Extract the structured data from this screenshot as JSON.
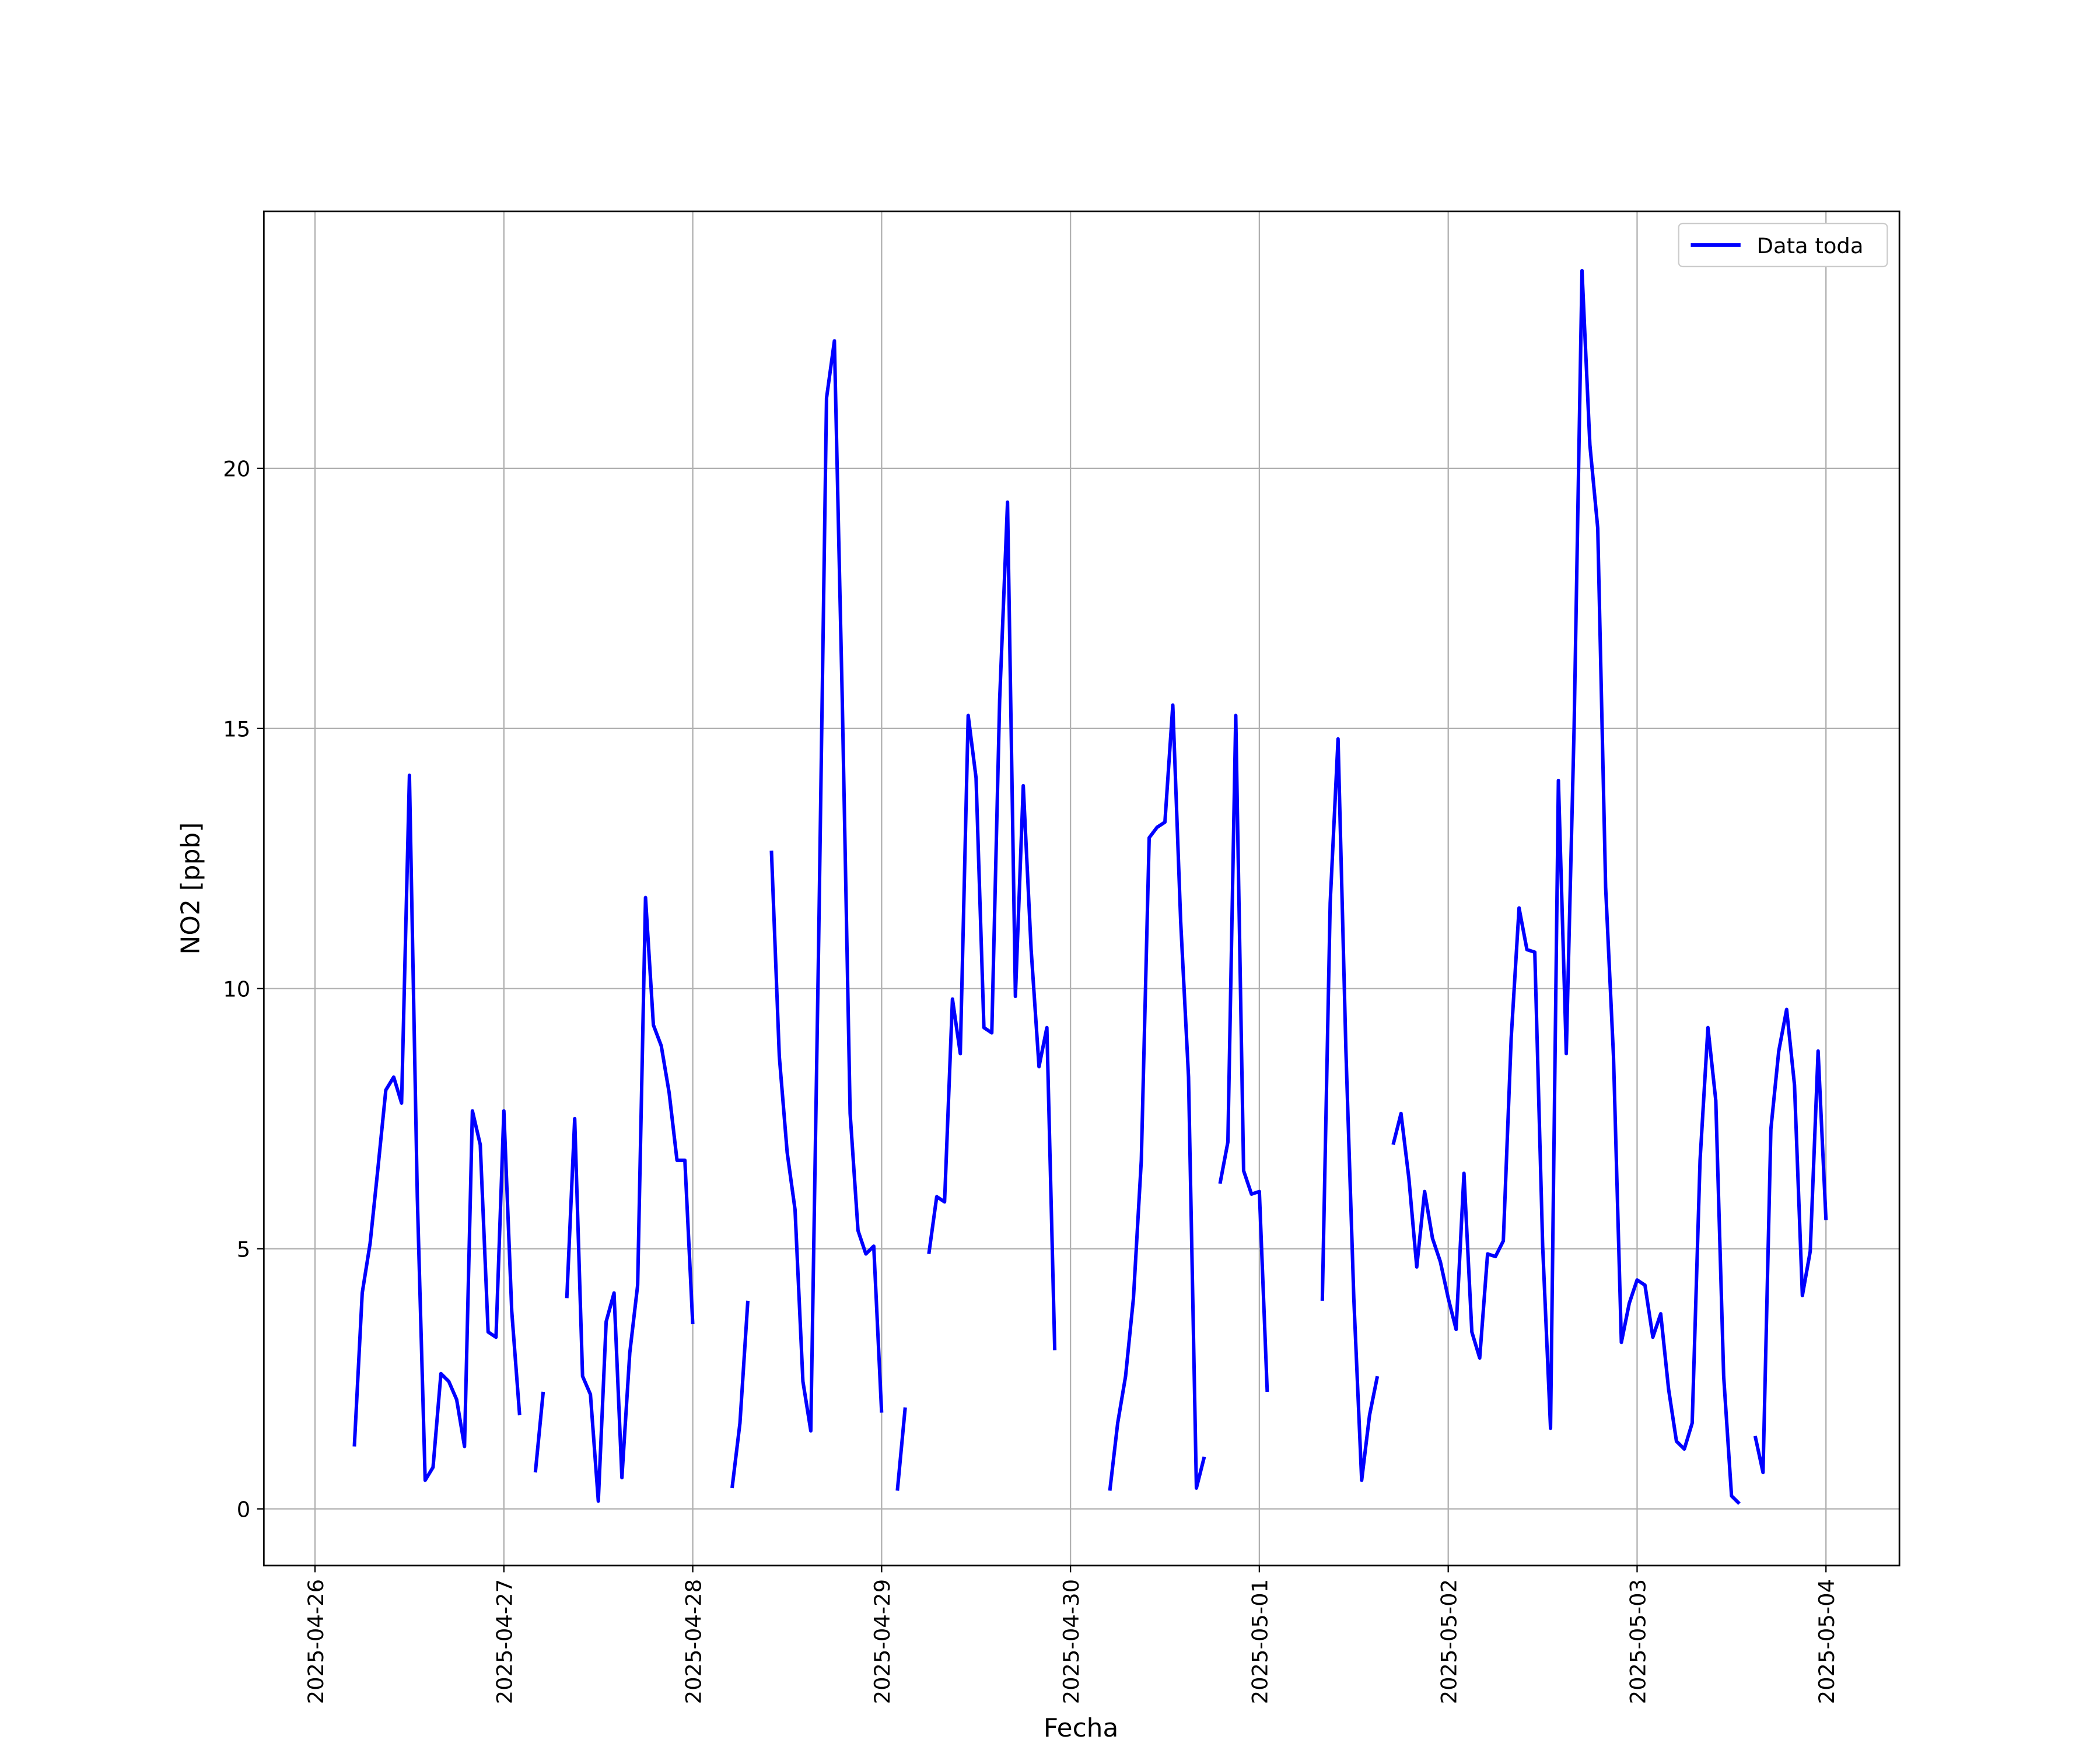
{
  "chart_data": {
    "type": "line",
    "xlabel": "Fecha",
    "ylabel": "NO2 [ppb]",
    "x": [
      "2025-04-26 05:00",
      "2025-04-26 06:00",
      "2025-04-26 07:00",
      "2025-04-26 08:00",
      "2025-04-26 09:00",
      "2025-04-26 10:00",
      "2025-04-26 11:00",
      "2025-04-26 12:00",
      "2025-04-26 13:00",
      "2025-04-26 14:00",
      "2025-04-26 15:00",
      "2025-04-26 16:00",
      "2025-04-26 17:00",
      "2025-04-26 18:00",
      "2025-04-26 19:00",
      "2025-04-26 20:00",
      "2025-04-26 21:00",
      "2025-04-26 22:00",
      "2025-04-26 23:00",
      "2025-04-27 00:00",
      "2025-04-27 01:00",
      "2025-04-27 02:00",
      "2025-04-27 03:00",
      "2025-04-27 04:00",
      "2025-04-27 05:00",
      "2025-04-27 06:00",
      "2025-04-27 07:00",
      "2025-04-27 08:00",
      "2025-04-27 09:00",
      "2025-04-27 10:00",
      "2025-04-27 11:00",
      "2025-04-27 12:00",
      "2025-04-27 13:00",
      "2025-04-27 14:00",
      "2025-04-27 15:00",
      "2025-04-27 16:00",
      "2025-04-27 17:00",
      "2025-04-27 18:00",
      "2025-04-27 19:00",
      "2025-04-27 20:00",
      "2025-04-27 21:00",
      "2025-04-27 22:00",
      "2025-04-27 23:00",
      "2025-04-28 00:00",
      "2025-04-28 01:00",
      "2025-04-28 02:00",
      "2025-04-28 03:00",
      "2025-04-28 04:00",
      "2025-04-28 05:00",
      "2025-04-28 06:00",
      "2025-04-28 07:00",
      "2025-04-28 08:00",
      "2025-04-28 09:00",
      "2025-04-28 10:00",
      "2025-04-28 11:00",
      "2025-04-28 12:00",
      "2025-04-28 13:00",
      "2025-04-28 14:00",
      "2025-04-28 15:00",
      "2025-04-28 16:00",
      "2025-04-28 17:00",
      "2025-04-28 18:00",
      "2025-04-28 19:00",
      "2025-04-28 20:00",
      "2025-04-28 21:00",
      "2025-04-28 22:00",
      "2025-04-28 23:00",
      "2025-04-29 00:00",
      "2025-04-29 01:00",
      "2025-04-29 02:00",
      "2025-04-29 03:00",
      "2025-04-29 04:00",
      "2025-04-29 05:00",
      "2025-04-29 06:00",
      "2025-04-29 07:00",
      "2025-04-29 08:00",
      "2025-04-29 09:00",
      "2025-04-29 10:00",
      "2025-04-29 11:00",
      "2025-04-29 12:00",
      "2025-04-29 13:00",
      "2025-04-29 14:00",
      "2025-04-29 15:00",
      "2025-04-29 16:00",
      "2025-04-29 17:00",
      "2025-04-29 18:00",
      "2025-04-29 19:00",
      "2025-04-29 20:00",
      "2025-04-29 21:00",
      "2025-04-29 22:00",
      "2025-04-29 23:00",
      "2025-04-30 00:00",
      "2025-04-30 01:00",
      "2025-04-30 02:00",
      "2025-04-30 03:00",
      "2025-04-30 04:00",
      "2025-04-30 05:00",
      "2025-04-30 06:00",
      "2025-04-30 07:00",
      "2025-04-30 08:00",
      "2025-04-30 09:00",
      "2025-04-30 10:00",
      "2025-04-30 11:00",
      "2025-04-30 12:00",
      "2025-04-30 13:00",
      "2025-04-30 14:00",
      "2025-04-30 15:00",
      "2025-04-30 16:00",
      "2025-04-30 17:00",
      "2025-04-30 18:00",
      "2025-04-30 19:00",
      "2025-04-30 20:00",
      "2025-04-30 21:00",
      "2025-04-30 22:00",
      "2025-04-30 23:00",
      "2025-05-01 00:00",
      "2025-05-01 01:00",
      "2025-05-01 02:00",
      "2025-05-01 03:00",
      "2025-05-01 04:00",
      "2025-05-01 05:00",
      "2025-05-01 06:00",
      "2025-05-01 07:00",
      "2025-05-01 08:00",
      "2025-05-01 09:00",
      "2025-05-01 10:00",
      "2025-05-01 11:00",
      "2025-05-01 12:00",
      "2025-05-01 13:00",
      "2025-05-01 14:00",
      "2025-05-01 15:00",
      "2025-05-01 16:00",
      "2025-05-01 17:00",
      "2025-05-01 18:00",
      "2025-05-01 19:00",
      "2025-05-01 20:00",
      "2025-05-01 21:00",
      "2025-05-01 22:00",
      "2025-05-01 23:00",
      "2025-05-02 00:00",
      "2025-05-02 01:00",
      "2025-05-02 02:00",
      "2025-05-02 03:00",
      "2025-05-02 04:00",
      "2025-05-02 05:00",
      "2025-05-02 06:00",
      "2025-05-02 07:00",
      "2025-05-02 08:00",
      "2025-05-02 09:00",
      "2025-05-02 10:00",
      "2025-05-02 11:00",
      "2025-05-02 12:00",
      "2025-05-02 13:00",
      "2025-05-02 14:00",
      "2025-05-02 15:00",
      "2025-05-02 16:00",
      "2025-05-02 17:00",
      "2025-05-02 18:00",
      "2025-05-02 19:00",
      "2025-05-02 20:00",
      "2025-05-02 21:00",
      "2025-05-02 22:00",
      "2025-05-02 23:00",
      "2025-05-03 00:00",
      "2025-05-03 01:00",
      "2025-05-03 02:00",
      "2025-05-03 03:00",
      "2025-05-03 04:00",
      "2025-05-03 05:00",
      "2025-05-03 06:00",
      "2025-05-03 07:00",
      "2025-05-03 08:00",
      "2025-05-03 09:00",
      "2025-05-03 10:00",
      "2025-05-03 11:00",
      "2025-05-03 12:00",
      "2025-05-03 13:00",
      "2025-05-03 14:00",
      "2025-05-03 15:00",
      "2025-05-03 16:00",
      "2025-05-03 17:00",
      "2025-05-03 18:00",
      "2025-05-03 19:00",
      "2025-05-03 20:00",
      "2025-05-03 21:00",
      "2025-05-03 22:00",
      "2025-05-03 23:00",
      "2025-05-04 00:00"
    ],
    "series": [
      {
        "name": "Data toda",
        "color": "#0000ff",
        "values": [
          1.2,
          4.15,
          5.1,
          6.55,
          8.05,
          8.3,
          7.8,
          14.1,
          6.0,
          0.55,
          0.8,
          2.6,
          2.45,
          2.1,
          1.2,
          7.65,
          7.0,
          3.4,
          3.3,
          7.65,
          3.8,
          1.8,
          null,
          0.7,
          2.25,
          null,
          null,
          4.05,
          7.5,
          2.55,
          2.2,
          0.15,
          3.6,
          4.15,
          0.6,
          3.0,
          4.3,
          11.75,
          9.3,
          8.9,
          8.0,
          6.7,
          6.7,
          3.55,
          null,
          null,
          null,
          null,
          0.4,
          1.65,
          4.0,
          null,
          null,
          12.65,
          8.7,
          6.85,
          5.75,
          2.45,
          1.5,
          10.9,
          21.35,
          22.45,
          15.55,
          7.6,
          5.35,
          4.9,
          5.05,
          1.85,
          null,
          0.35,
          1.95,
          null,
          null,
          4.9,
          6.0,
          5.9,
          9.8,
          8.75,
          15.25,
          14.05,
          9.25,
          9.15,
          15.55,
          19.35,
          9.85,
          13.9,
          10.75,
          8.5,
          9.25,
          3.05,
          null,
          null,
          null,
          null,
          null,
          null,
          0.35,
          1.65,
          2.55,
          4.05,
          6.7,
          12.9,
          13.1,
          13.2,
          15.45,
          11.3,
          8.3,
          0.4,
          1.0,
          null,
          6.25,
          7.05,
          15.25,
          6.5,
          6.05,
          6.1,
          2.25,
          null,
          null,
          null,
          null,
          null,
          null,
          4.0,
          11.65,
          14.8,
          8.8,
          4.05,
          0.55,
          1.8,
          2.55,
          null,
          7.0,
          7.6,
          6.35,
          4.65,
          6.1,
          5.2,
          4.75,
          4.05,
          3.45,
          6.45,
          3.4,
          2.9,
          4.9,
          4.85,
          5.15,
          9.05,
          11.55,
          10.75,
          10.7,
          5.05,
          1.55,
          14.0,
          8.75,
          15.05,
          23.8,
          20.45,
          18.85,
          11.95,
          8.7,
          3.2,
          3.95,
          4.4,
          4.3,
          3.3,
          3.75,
          2.3,
          1.3,
          1.15,
          1.65,
          6.7,
          9.25,
          7.85,
          2.55,
          0.25,
          0.1,
          null,
          1.4,
          0.7,
          7.3,
          8.8,
          9.6,
          8.15,
          4.1,
          4.95,
          8.8,
          5.55
        ]
      }
    ],
    "xlim": [
      "2025-04-25 17:30",
      "2025-05-04 09:20"
    ],
    "xticks": [
      "2025-04-26",
      "2025-04-27",
      "2025-04-28",
      "2025-04-29",
      "2025-04-30",
      "2025-05-01",
      "2025-05-02",
      "2025-05-03",
      "2025-05-04"
    ],
    "ylim": [
      -1.09,
      24.94
    ],
    "yticks": [
      0,
      5,
      10,
      15,
      20
    ],
    "grid": true,
    "legend": "upper right"
  }
}
